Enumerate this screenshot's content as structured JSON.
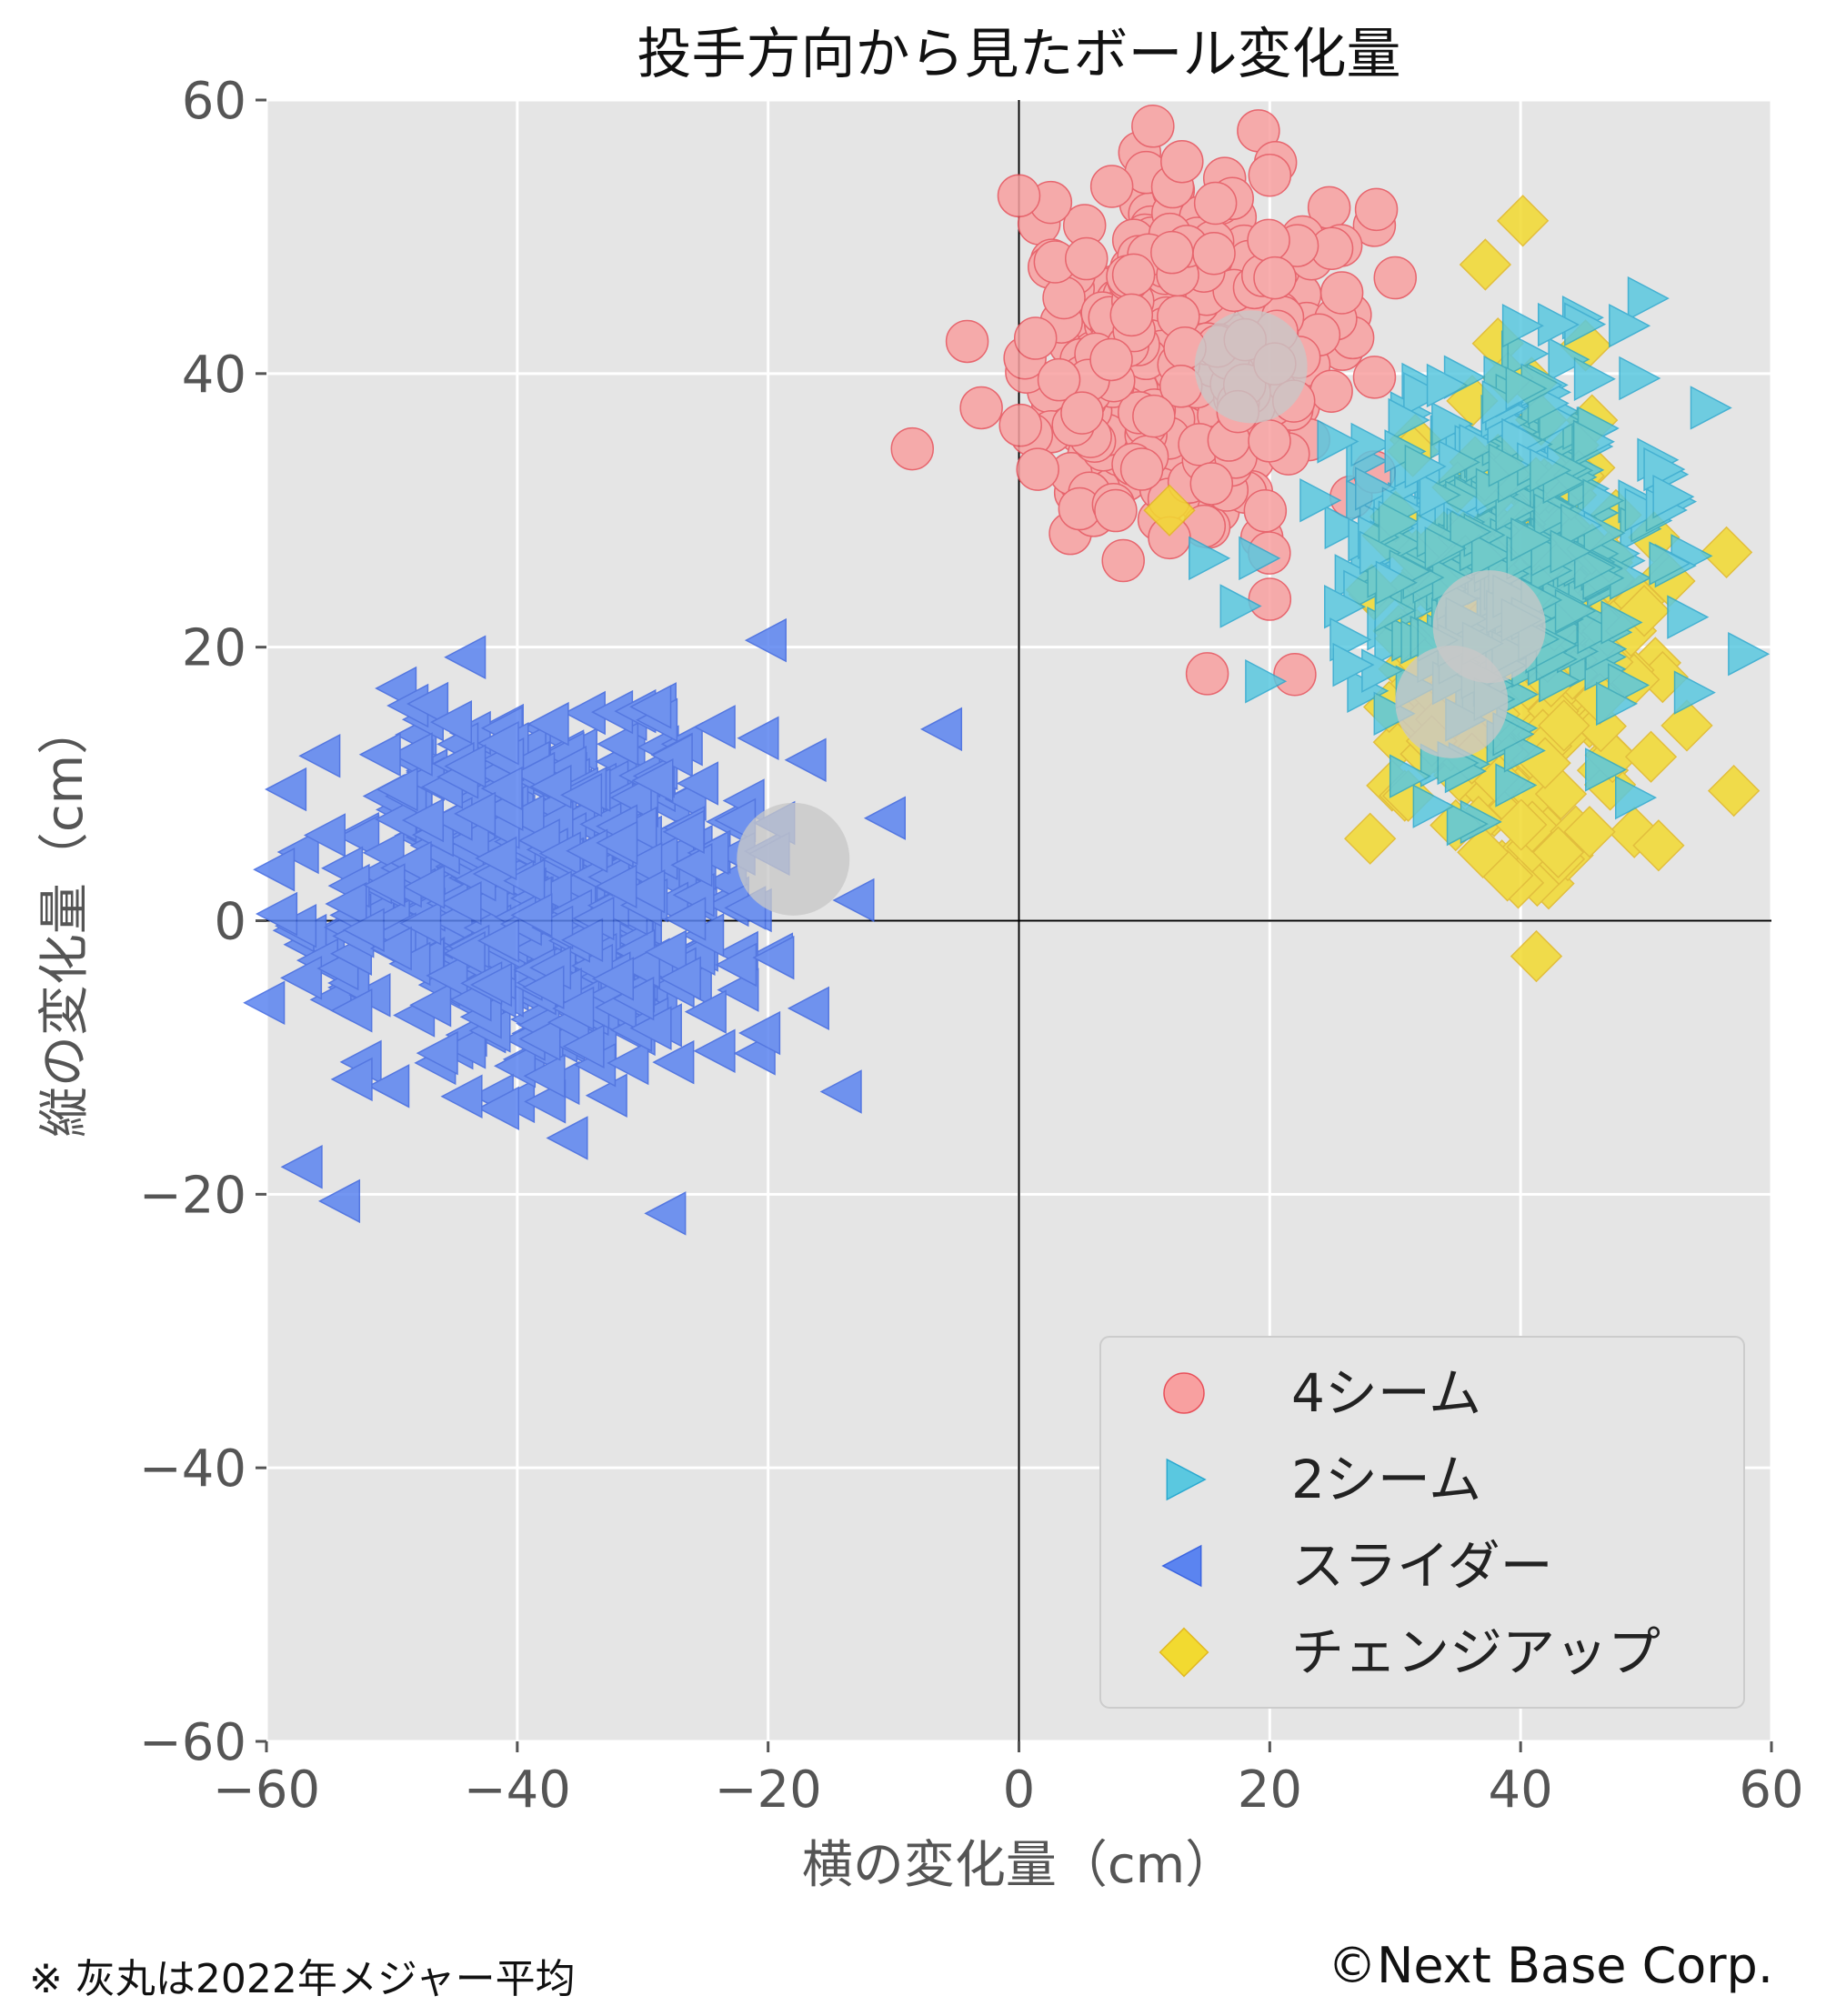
{
  "chart_data": {
    "type": "scatter",
    "title": "投手方向から見たボール変化量",
    "xlabel": "横の変化量（cm）",
    "ylabel": "縦の変化量（cm）",
    "xlim": [
      -60,
      60
    ],
    "ylim": [
      -60,
      60
    ],
    "xticks": [
      -60,
      -40,
      -20,
      0,
      20,
      40,
      60
    ],
    "yticks": [
      -60,
      -40,
      -20,
      0,
      20,
      40,
      60
    ],
    "xtick_labels": [
      "−60",
      "−40",
      "−20",
      "0",
      "20",
      "40",
      "60"
    ],
    "ytick_labels": [
      "−60",
      "−40",
      "−20",
      "0",
      "20",
      "40",
      "60"
    ],
    "grid": true,
    "legend_position": "bottom-right",
    "series": [
      {
        "name": "4シーム",
        "marker": "circle",
        "color": "#f8a0a0",
        "edge_color": "#e8505a",
        "centroid": [
          13,
          42
        ],
        "spread": [
          5.5,
          6
        ],
        "count": 400,
        "extra_points": [
          [
            -8.5,
            34.5
          ],
          [
            -3,
            37.5
          ],
          [
            0,
            53
          ],
          [
            1.5,
            33
          ],
          [
            12,
            28
          ],
          [
            20,
            23.5
          ],
          [
            22,
            18
          ],
          [
            30,
            47
          ],
          [
            28.5,
            52
          ],
          [
            20,
            54.5
          ],
          [
            13,
            55.5
          ]
        ]
      },
      {
        "name": "2シーム",
        "marker": "triangle-right",
        "color": "#5ac8e0",
        "edge_color": "#2aa8cf",
        "centroid": [
          39,
          27
        ],
        "spread": [
          5.5,
          6.5
        ],
        "count": 400,
        "extra_points": [
          [
            50,
            45.5
          ],
          [
            48.5,
            43.5
          ],
          [
            40,
            43.5
          ],
          [
            55,
            37.5
          ],
          [
            52,
            31
          ],
          [
            58,
            19.5
          ],
          [
            49,
            9
          ],
          [
            15,
            26.5
          ],
          [
            19.5,
            17.5
          ],
          [
            17.5,
            23
          ],
          [
            19,
            26.5
          ]
        ]
      },
      {
        "name": "スライダー",
        "marker": "triangle-left",
        "color": "#5b84f0",
        "edge_color": "#3b64e0",
        "centroid": [
          -38,
          2
        ],
        "spread": [
          8,
          6.5
        ],
        "count": 600,
        "extra_points": [
          [
            -20,
            20.5
          ],
          [
            -6,
            14
          ],
          [
            -57,
            -18
          ],
          [
            -54,
            -20.5
          ],
          [
            -59,
            0.5
          ],
          [
            -60,
            -6
          ],
          [
            -14,
            -12.5
          ],
          [
            -13,
            1.5
          ],
          [
            -10.5,
            7.5
          ]
        ]
      },
      {
        "name": "チェンジアップ",
        "marker": "diamond",
        "color": "#f2da30",
        "edge_color": "#e2b820",
        "centroid": [
          40,
          20
        ],
        "spread": [
          5,
          8
        ],
        "count": 320,
        "extra_points": [
          [
            57,
            9.5
          ],
          [
            51,
            5.5
          ],
          [
            28,
            6
          ],
          [
            37,
            5
          ],
          [
            43,
            5
          ],
          [
            45.5,
            6.5
          ],
          [
            12,
            30
          ]
        ]
      }
    ],
    "league_average_points": [
      [
        18.5,
        40.5
      ],
      [
        37.5,
        21.5
      ],
      [
        34.5,
        16
      ],
      [
        -18,
        4.5
      ]
    ],
    "league_average_color": "#c8c8c8"
  },
  "annotations": {
    "footnote": "※ 灰丸は2022年メジャー平均",
    "copyright": "©Next Base Corp."
  }
}
